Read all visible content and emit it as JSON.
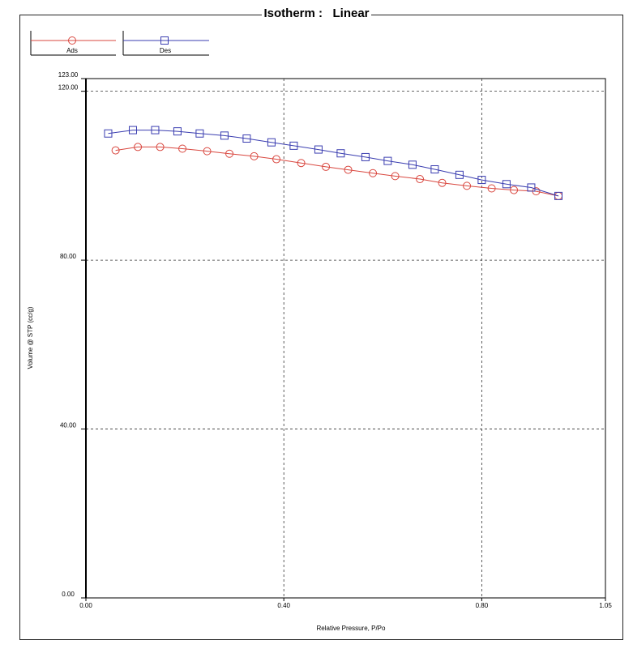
{
  "chart_data": {
    "type": "line",
    "title": "Isotherm :   Linear",
    "xlabel": "Relative Pressure, P/Po",
    "ylabel": "Volume @ STP (cc/g)",
    "xlim": [
      0.0,
      1.05
    ],
    "ylim": [
      0.0,
      123.0
    ],
    "x_ticks": [
      "0.00",
      "0.40",
      "0.80",
      "1.05"
    ],
    "y_ticks": [
      "0.00",
      "40.00",
      "80.00",
      "120.00",
      "123.00"
    ],
    "grid": true,
    "legend_position": "top-left",
    "series": [
      {
        "name": "Ads",
        "color": "#d9473f",
        "marker": "circle",
        "x": [
          0.06,
          0.105,
          0.15,
          0.195,
          0.245,
          0.29,
          0.34,
          0.385,
          0.435,
          0.485,
          0.53,
          0.58,
          0.625,
          0.675,
          0.72,
          0.77,
          0.82,
          0.865,
          0.91,
          0.955
        ],
        "y": [
          106.0,
          106.8,
          106.8,
          106.4,
          105.8,
          105.2,
          104.6,
          103.9,
          103.0,
          102.1,
          101.4,
          100.6,
          99.9,
          99.2,
          98.3,
          97.6,
          97.0,
          96.6,
          96.3,
          95.2
        ]
      },
      {
        "name": "Des",
        "color": "#3a3db0",
        "marker": "square",
        "x": [
          0.045,
          0.095,
          0.14,
          0.185,
          0.23,
          0.28,
          0.325,
          0.375,
          0.42,
          0.47,
          0.515,
          0.565,
          0.61,
          0.66,
          0.705,
          0.755,
          0.8,
          0.85,
          0.9,
          0.955
        ],
        "y": [
          110.0,
          110.8,
          110.8,
          110.5,
          110.0,
          109.5,
          108.8,
          107.9,
          107.1,
          106.2,
          105.3,
          104.4,
          103.5,
          102.6,
          101.5,
          100.2,
          99.0,
          98.0,
          97.2,
          95.2
        ]
      }
    ]
  }
}
